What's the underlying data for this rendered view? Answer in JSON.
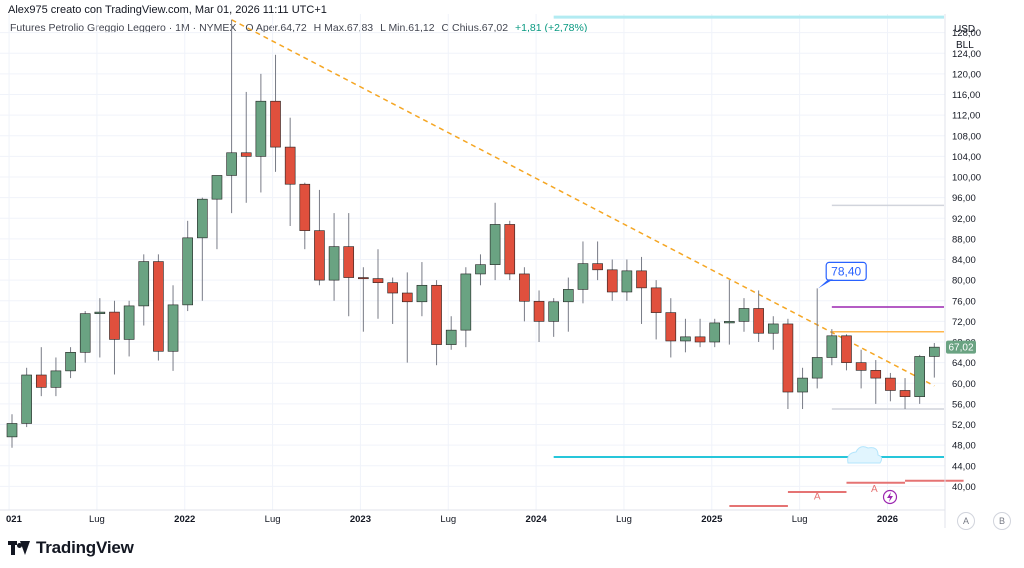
{
  "header": {
    "author_line": "Alex975 creato con TradingView.com, Mar 01, 2026 11:11 UTC+1",
    "symbol_line": "Futures Petrolio Greggio Leggero · 1M · NYMEX",
    "ohlc": [
      {
        "k": "O",
        "v": "Aper.64,72"
      },
      {
        "k": "H",
        "v": "Max.67,83"
      },
      {
        "k": "L",
        "v": "Min.61,12"
      },
      {
        "k": "C",
        "v": "Chius.67,02"
      }
    ],
    "change": "+1,81 (+2,78%)"
  },
  "currency": "USD",
  "unit": "BLL",
  "brand": "TradingView",
  "scale_buttons": [
    "A",
    "B"
  ],
  "colors": {
    "up": "#6aa382",
    "down": "#e0503d",
    "trendline": "#f5a623",
    "label_blue": "#2962ff",
    "cyan": "#26c6da",
    "purple": "#9c27b0",
    "orange": "#ffb74d",
    "red_line": "#e57373"
  },
  "chart_data": {
    "type": "candlestick",
    "x_labels": [
      "021",
      "Lug",
      "2022",
      "Lug",
      "2023",
      "Lug",
      "2024",
      "Lug",
      "2025",
      "Lug",
      "2026"
    ],
    "y_ticks": [
      "40,00",
      "44,00",
      "48,00",
      "52,00",
      "56,00",
      "60,00",
      "64,00",
      "68,00",
      "72,00",
      "76,00",
      "80,00",
      "84,00",
      "88,00",
      "92,00",
      "96,00",
      "100,00",
      "104,00",
      "108,00",
      "112,00",
      "116,00",
      "120,00",
      "124,00",
      "128,00"
    ],
    "ylim": [
      36,
      132
    ],
    "last_price_label": "67,02",
    "annotation": "78,40",
    "alert_labels": [
      "A",
      "A"
    ],
    "candles": [
      {
        "o": 49.6,
        "h": 54.0,
        "l": 47.5,
        "c": 52.2
      },
      {
        "o": 52.2,
        "h": 63.0,
        "l": 51.5,
        "c": 61.6
      },
      {
        "o": 61.6,
        "h": 67.0,
        "l": 57.5,
        "c": 59.2
      },
      {
        "o": 59.2,
        "h": 65.0,
        "l": 57.5,
        "c": 62.4
      },
      {
        "o": 62.4,
        "h": 67.0,
        "l": 61.0,
        "c": 66.0
      },
      {
        "o": 66.0,
        "h": 74.0,
        "l": 64.0,
        "c": 73.5
      },
      {
        "o": 73.5,
        "h": 76.5,
        "l": 65.0,
        "c": 73.8
      },
      {
        "o": 73.8,
        "h": 76.0,
        "l": 61.7,
        "c": 68.5
      },
      {
        "o": 68.5,
        "h": 76.0,
        "l": 65.2,
        "c": 75.0
      },
      {
        "o": 75.0,
        "h": 85.0,
        "l": 71.2,
        "c": 83.6
      },
      {
        "o": 83.6,
        "h": 85.0,
        "l": 64.4,
        "c": 66.2
      },
      {
        "o": 66.2,
        "h": 79.0,
        "l": 62.4,
        "c": 75.2
      },
      {
        "o": 75.2,
        "h": 91.5,
        "l": 74.0,
        "c": 88.2
      },
      {
        "o": 88.2,
        "h": 96.0,
        "l": 76.0,
        "c": 95.7
      },
      {
        "o": 95.7,
        "h": 100.0,
        "l": 86.0,
        "c": 100.3
      },
      {
        "o": 100.3,
        "h": 130.5,
        "l": 93.0,
        "c": 104.7
      },
      {
        "o": 104.7,
        "h": 116.5,
        "l": 95.0,
        "c": 104.0
      },
      {
        "o": 104.0,
        "h": 120.0,
        "l": 97.0,
        "c": 114.7
      },
      {
        "o": 114.7,
        "h": 123.7,
        "l": 101.0,
        "c": 105.8
      },
      {
        "o": 105.8,
        "h": 111.5,
        "l": 90.5,
        "c": 98.6
      },
      {
        "o": 98.6,
        "h": 98.9,
        "l": 86.0,
        "c": 89.6
      },
      {
        "o": 89.6,
        "h": 97.5,
        "l": 79.0,
        "c": 80.0
      },
      {
        "o": 80.0,
        "h": 93.0,
        "l": 76.0,
        "c": 86.5
      },
      {
        "o": 86.5,
        "h": 93.0,
        "l": 73.0,
        "c": 80.5
      },
      {
        "o": 80.5,
        "h": 82.5,
        "l": 70.0,
        "c": 80.3
      },
      {
        "o": 80.3,
        "h": 86.0,
        "l": 72.5,
        "c": 79.5
      },
      {
        "o": 79.5,
        "h": 80.5,
        "l": 71.5,
        "c": 77.5
      },
      {
        "o": 77.5,
        "h": 81.5,
        "l": 64.0,
        "c": 75.8
      },
      {
        "o": 75.8,
        "h": 83.5,
        "l": 73.0,
        "c": 79.0
      },
      {
        "o": 79.0,
        "h": 80.0,
        "l": 63.5,
        "c": 67.5
      },
      {
        "o": 67.5,
        "h": 73.0,
        "l": 66.5,
        "c": 70.3
      },
      {
        "o": 70.3,
        "h": 82.5,
        "l": 67.0,
        "c": 81.2
      },
      {
        "o": 81.2,
        "h": 85.0,
        "l": 79.0,
        "c": 83.0
      },
      {
        "o": 83.0,
        "h": 95.0,
        "l": 80.0,
        "c": 90.8
      },
      {
        "o": 90.8,
        "h": 91.5,
        "l": 80.0,
        "c": 81.2
      },
      {
        "o": 81.2,
        "h": 82.5,
        "l": 72.0,
        "c": 75.9
      },
      {
        "o": 75.9,
        "h": 78.0,
        "l": 68.0,
        "c": 72.0
      },
      {
        "o": 72.0,
        "h": 76.5,
        "l": 69.0,
        "c": 75.8
      },
      {
        "o": 75.8,
        "h": 80.5,
        "l": 70.0,
        "c": 78.2
      },
      {
        "o": 78.2,
        "h": 87.5,
        "l": 75.5,
        "c": 83.2
      },
      {
        "o": 83.2,
        "h": 87.5,
        "l": 80.0,
        "c": 82.0
      },
      {
        "o": 82.0,
        "h": 84.0,
        "l": 76.0,
        "c": 77.7
      },
      {
        "o": 77.7,
        "h": 84.0,
        "l": 76.0,
        "c": 81.8
      },
      {
        "o": 81.8,
        "h": 84.5,
        "l": 71.5,
        "c": 78.5
      },
      {
        "o": 78.5,
        "h": 80.0,
        "l": 68.5,
        "c": 73.7
      },
      {
        "o": 73.7,
        "h": 76.5,
        "l": 65.0,
        "c": 68.2
      },
      {
        "o": 68.2,
        "h": 72.5,
        "l": 66.0,
        "c": 69.0
      },
      {
        "o": 69.0,
        "h": 72.5,
        "l": 67.0,
        "c": 68.0
      },
      {
        "o": 68.0,
        "h": 72.5,
        "l": 67.0,
        "c": 71.7
      },
      {
        "o": 71.7,
        "h": 80.0,
        "l": 67.5,
        "c": 72.0
      },
      {
        "o": 72.0,
        "h": 76.5,
        "l": 70.0,
        "c": 74.5
      },
      {
        "o": 74.5,
        "h": 78.0,
        "l": 68.0,
        "c": 69.7
      },
      {
        "o": 69.7,
        "h": 73.0,
        "l": 66.5,
        "c": 71.5
      },
      {
        "o": 71.5,
        "h": 72.5,
        "l": 55.0,
        "c": 58.3
      },
      {
        "o": 58.3,
        "h": 63.0,
        "l": 55.0,
        "c": 61.0
      },
      {
        "o": 61.0,
        "h": 78.4,
        "l": 59.0,
        "c": 65.0
      },
      {
        "o": 65.0,
        "h": 70.5,
        "l": 63.5,
        "c": 69.2
      },
      {
        "o": 69.2,
        "h": 69.5,
        "l": 62.5,
        "c": 64.0
      },
      {
        "o": 64.0,
        "h": 66.5,
        "l": 59.0,
        "c": 62.5
      },
      {
        "o": 62.5,
        "h": 64.5,
        "l": 56.0,
        "c": 61.0
      },
      {
        "o": 61.0,
        "h": 62.0,
        "l": 56.5,
        "c": 58.6
      },
      {
        "o": 58.6,
        "h": 61.0,
        "l": 55.0,
        "c": 57.4
      },
      {
        "o": 57.4,
        "h": 65.5,
        "l": 56.0,
        "c": 65.2
      },
      {
        "o": 65.2,
        "h": 67.8,
        "l": 61.1,
        "c": 67.0
      }
    ],
    "trendline": [
      [
        15,
        130.5
      ],
      [
        63,
        59.5
      ]
    ],
    "levels": [
      {
        "value": 131.0,
        "from": 37,
        "to": 66,
        "color": "#b2ebf2",
        "width": 3
      },
      {
        "value": 94.5,
        "from": 56,
        "to": 66,
        "color": "#d1d4dc",
        "width": 1.5
      },
      {
        "value": 74.8,
        "from": 56,
        "to": 66,
        "color": "#9c27b0",
        "width": 1.5
      },
      {
        "value": 70.0,
        "from": 56,
        "to": 66,
        "color": "#ffb74d",
        "width": 1.5
      },
      {
        "value": 55.0,
        "from": 56,
        "to": 66,
        "color": "#d1d4dc",
        "width": 1.5
      },
      {
        "value": 45.7,
        "from": 37,
        "to": 66,
        "color": "#26c6da",
        "width": 2
      }
    ],
    "red_levels": [
      {
        "value": 36.2,
        "from": 49,
        "to": 53
      },
      {
        "value": 38.9,
        "from": 53,
        "to": 57
      },
      {
        "value": 40.7,
        "from": 57,
        "to": 61
      },
      {
        "value": 41.1,
        "from": 61,
        "to": 65
      }
    ],
    "alerts": [
      {
        "at": 55,
        "value": 38.0
      },
      {
        "at": 58.9,
        "value": 39.5
      }
    ]
  }
}
